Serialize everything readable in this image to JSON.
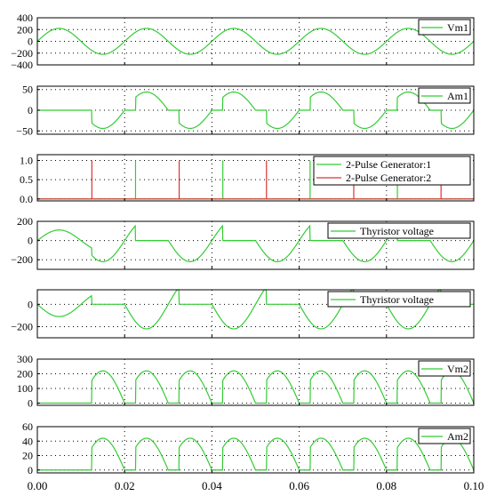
{
  "chart_data": {
    "type": "line",
    "x_axis": {
      "range": [
        0,
        0.1
      ],
      "ticks": [
        0,
        0.02,
        0.04,
        0.06,
        0.08,
        0.1
      ],
      "tick_labels": [
        "0.00",
        "0.02",
        "0.04",
        "0.06",
        "0.08",
        "0.10"
      ]
    },
    "panels": [
      {
        "id": "vm1",
        "ylim": [
          -400,
          400
        ],
        "yticks": [
          400,
          200,
          0,
          -200,
          -400
        ],
        "ytick_labels": [
          "400",
          "200",
          "0",
          "−200",
          "−400"
        ],
        "series": [
          {
            "name": "Vm1",
            "color": "#33cc33",
            "signal": "source",
            "amplitude": 220,
            "frequency_hz": 50
          }
        ]
      },
      {
        "id": "am1",
        "ylim": [
          -58,
          58
        ],
        "yticks": [
          50,
          0,
          -50
        ],
        "ytick_labels": [
          "50",
          "0",
          "−50"
        ],
        "series": [
          {
            "name": "Am1",
            "color": "#33cc33",
            "signal": "line_current",
            "peak": 44,
            "start_time": 0.0125,
            "firing_delay": 0.0025,
            "frequency_hz": 50
          }
        ]
      },
      {
        "id": "pulses",
        "ylim": [
          -0.05,
          1.15
        ],
        "yticks": [
          1.0,
          0.5,
          0.0
        ],
        "ytick_labels": [
          "1.0",
          "0.5",
          "0.0"
        ],
        "series": [
          {
            "name": "2-Pulse Generator:1",
            "color": "#33cc33",
            "signal": "pulses",
            "times": [
              0.0225,
              0.0425,
              0.0625,
              0.0825
            ]
          },
          {
            "name": "2-Pulse Generator:2",
            "color": "#dd3333",
            "signal": "pulses",
            "times": [
              0.0125,
              0.0325,
              0.0525,
              0.0725,
              0.0925
            ]
          }
        ]
      },
      {
        "id": "thy1",
        "ylim": [
          -300,
          200
        ],
        "yticks": [
          200,
          0,
          -200
        ],
        "ytick_labels": [
          "200",
          "0",
          "−200"
        ],
        "series": [
          {
            "name": "Thyristor voltage",
            "color": "#33cc33",
            "signal": "thyristor_1",
            "conduction": [
              [
                0.0225,
                0.03
              ],
              [
                0.0425,
                0.05
              ],
              [
                0.0625,
                0.07
              ],
              [
                0.0825,
                0.09
              ]
            ]
          }
        ]
      },
      {
        "id": "thy2",
        "ylim": [
          -300,
          130
        ],
        "yticks": [
          0,
          -200
        ],
        "ytick_labels": [
          "0",
          "−200"
        ],
        "series": [
          {
            "name": "Thyristor voltage",
            "color": "#33cc33",
            "signal": "thyristor_2",
            "conduction": [
              [
                0.0125,
                0.02
              ],
              [
                0.0325,
                0.04
              ],
              [
                0.0525,
                0.06
              ],
              [
                0.0725,
                0.08
              ],
              [
                0.0925,
                0.1
              ]
            ]
          }
        ]
      },
      {
        "id": "vm2",
        "ylim": [
          -15,
          300
        ],
        "yticks": [
          300,
          200,
          100,
          0
        ],
        "ytick_labels": [
          "300",
          "200",
          "100",
          "0"
        ],
        "series": [
          {
            "name": "Vm2",
            "color": "#33cc33",
            "signal": "rectified_voltage",
            "amplitude": 220,
            "start_time": 0.0125,
            "firing_delay": 0.0025
          }
        ]
      },
      {
        "id": "am2",
        "ylim": [
          -4,
          60
        ],
        "yticks": [
          60,
          40,
          20,
          0
        ],
        "ytick_labels": [
          "60",
          "40",
          "20",
          "0"
        ],
        "series": [
          {
            "name": "Am2",
            "color": "#33cc33",
            "signal": "rectified_current",
            "peak": 44,
            "start_time": 0.0125,
            "firing_delay": 0.0025
          }
        ]
      }
    ]
  }
}
